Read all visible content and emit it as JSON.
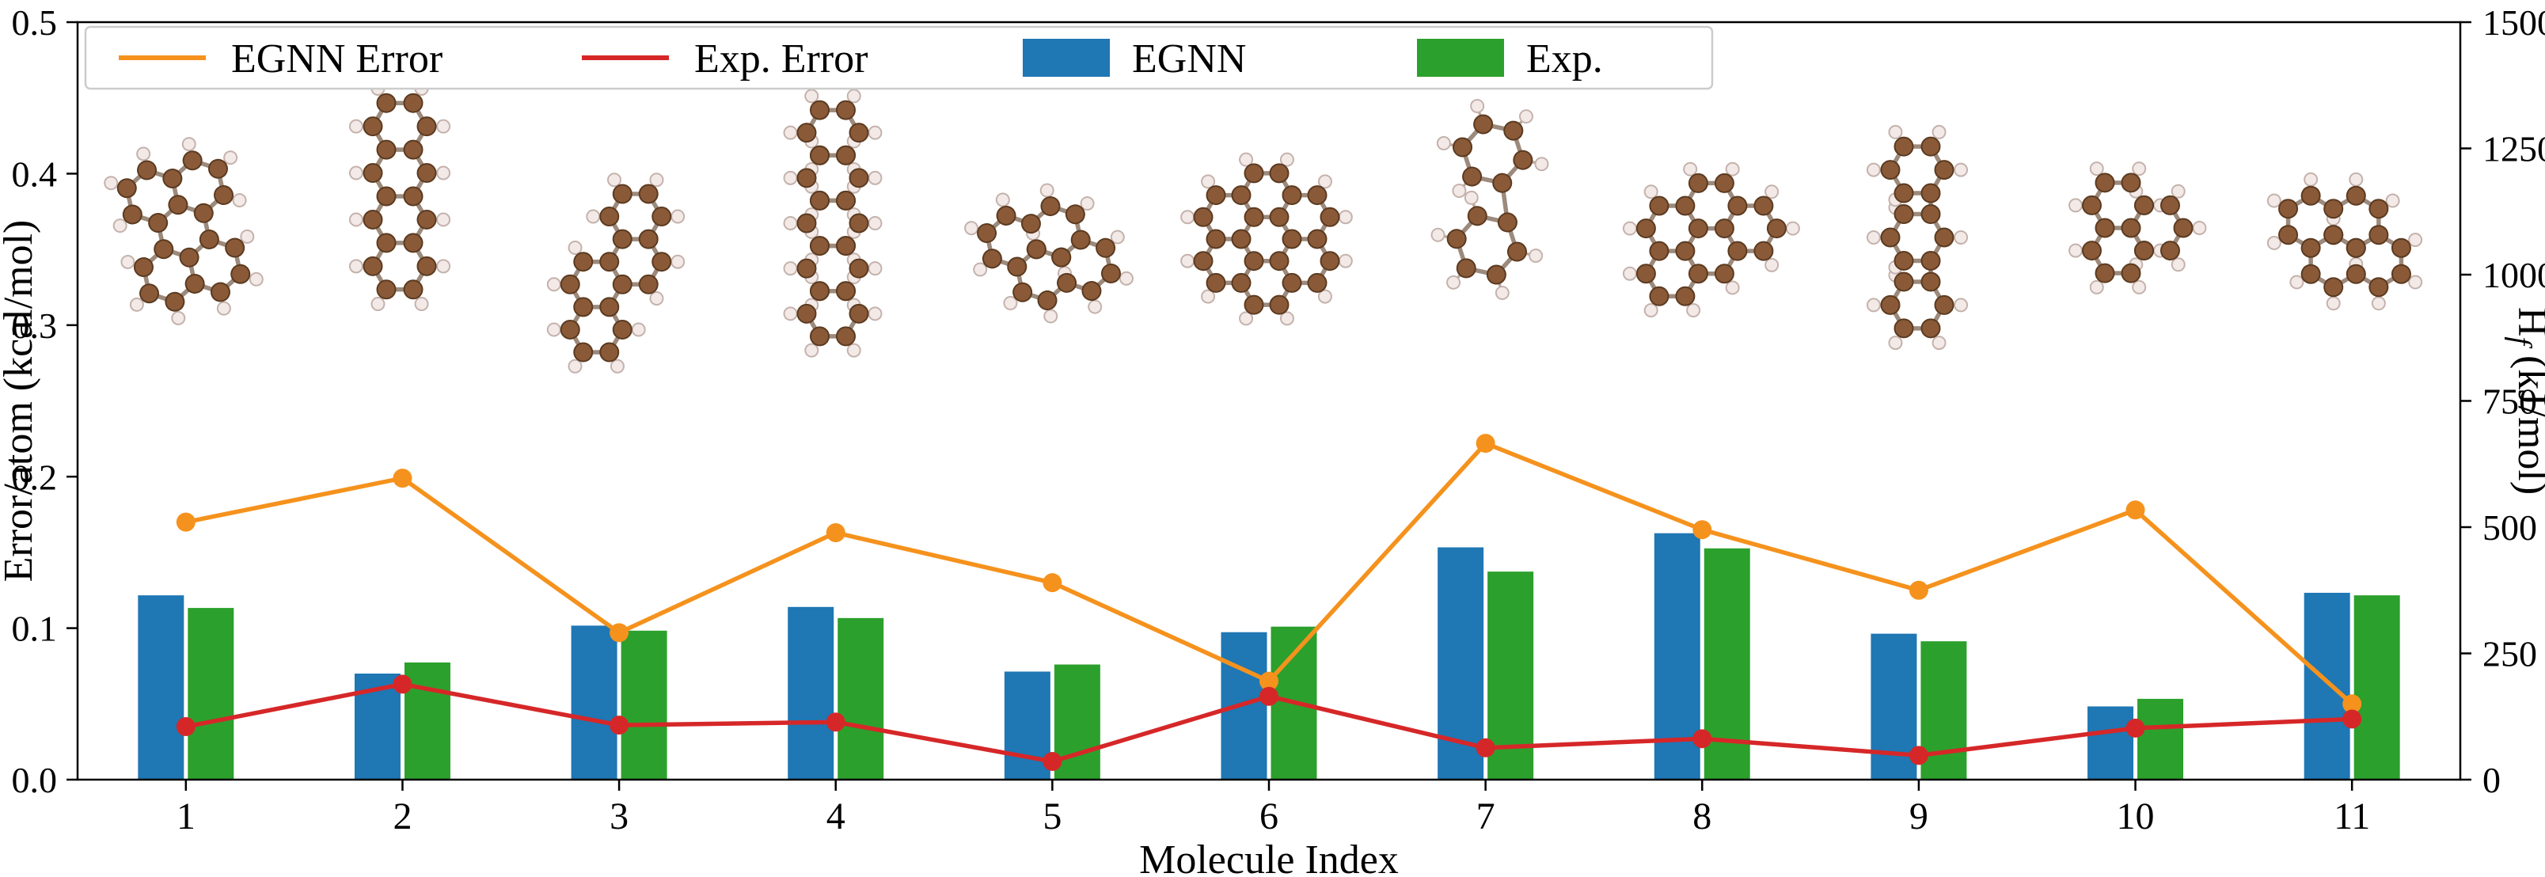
{
  "figure": {
    "xlabel": "Molecule Index",
    "ylabel_left": "Error/atom (kcal/mol)",
    "ylabel_right": "Hf (kJ/mol)",
    "ylabel_right_parts": {
      "pre": "H",
      "sub": "f",
      "post": " (kJ/mol)"
    }
  },
  "legend": {
    "position": "upper left",
    "entries": [
      {
        "label": "EGNN Error",
        "type": "line",
        "color": "#f5921d"
      },
      {
        "label": "Exp. Error",
        "type": "line",
        "color": "#d62728"
      },
      {
        "label": "EGNN",
        "type": "bar",
        "color": "#1f77b4"
      },
      {
        "label": "Exp.",
        "type": "bar",
        "color": "#2ca02c"
      }
    ]
  },
  "chart_data": {
    "type": "bar",
    "title": "",
    "xlabel": "Molecule Index",
    "ylabel_left": "Error/atom (kcal/mol)",
    "ylabel_right": "Hf (kJ/mol)",
    "x": [
      1,
      2,
      3,
      4,
      5,
      6,
      7,
      8,
      9,
      10,
      11
    ],
    "left_axis": {
      "lim": [
        0.0,
        0.5
      ],
      "ticks": [
        0.0,
        0.1,
        0.2,
        0.3,
        0.4,
        0.5
      ],
      "tick_labels": [
        "0.0",
        "0.1",
        "0.2",
        "0.3",
        "0.4",
        "0.5"
      ]
    },
    "right_axis": {
      "lim": [
        0,
        1500
      ],
      "ticks": [
        0,
        250,
        500,
        750,
        1000,
        1250,
        1500
      ],
      "tick_labels": [
        "0",
        "250",
        "500",
        "750",
        "1000",
        "1250",
        "1500"
      ]
    },
    "bar_series": [
      {
        "name": "EGNN",
        "color": "#1f77b4",
        "axis": "right",
        "unit": "kJ/mol",
        "values": [
          365,
          210,
          305,
          342,
          214,
          292,
          460,
          488,
          289,
          145,
          370
        ]
      },
      {
        "name": "Exp.",
        "color": "#2ca02c",
        "axis": "right",
        "unit": "kJ/mol",
        "values": [
          340,
          232,
          295,
          320,
          228,
          303,
          412,
          458,
          274,
          160,
          365
        ]
      }
    ],
    "line_series": [
      {
        "name": "EGNN Error",
        "color": "#f5921d",
        "axis": "left",
        "unit": "kcal/mol",
        "marker": "circle",
        "values": [
          0.17,
          0.199,
          0.097,
          0.163,
          0.13,
          0.065,
          0.222,
          0.165,
          0.125,
          0.178,
          0.05
        ]
      },
      {
        "name": "Exp. Error",
        "color": "#d62728",
        "axis": "left",
        "unit": "kcal/mol",
        "marker": "circle",
        "values": [
          0.035,
          0.063,
          0.036,
          0.038,
          0.012,
          0.055,
          0.021,
          0.027,
          0.016,
          0.034,
          0.04
        ]
      }
    ],
    "legend": {
      "position": "upper left",
      "entries": [
        "EGNN Error",
        "Exp. Error",
        "EGNN",
        "Exp."
      ]
    },
    "grid": false,
    "annotations": {
      "molecule_images": {
        "count": 11,
        "style": "ball-and-stick polycyclic aromatic hydrocarbon structures above each bar group",
        "carbon_color": "#8a5a38",
        "hydrogen_color": "#f3eae8"
      }
    }
  }
}
